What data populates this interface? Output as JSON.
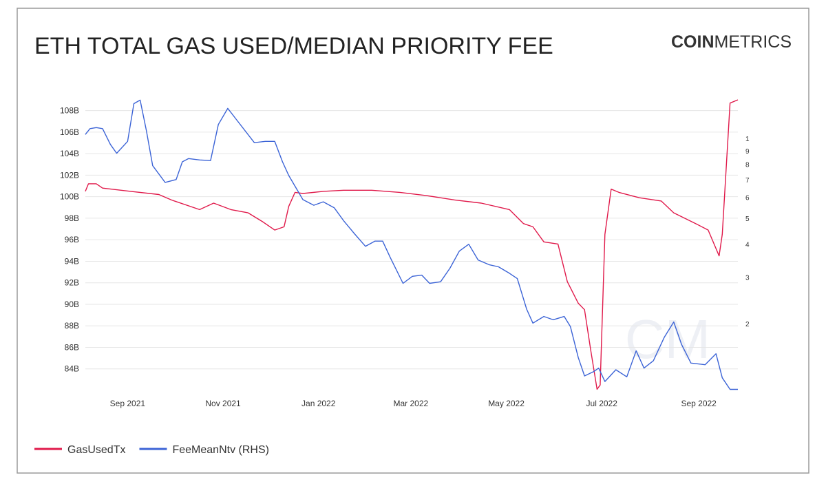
{
  "chart_data": {
    "type": "line",
    "title": "ETH TOTAL GAS USED/MEDIAN PRIORITY FEE",
    "brand": {
      "bold": "COIN",
      "light": "METRICS"
    },
    "watermark": "CM",
    "xlim": [
      "2021-08-05",
      "2022-09-26"
    ],
    "xticks": [
      {
        "value": "2021-09-01",
        "label": "Sep 2021"
      },
      {
        "value": "2021-11-01",
        "label": "Nov 2021"
      },
      {
        "value": "2022-01-01",
        "label": "Jan 2022"
      },
      {
        "value": "2022-03-01",
        "label": "Mar 2022"
      },
      {
        "value": "2022-05-01",
        "label": "May 2022"
      },
      {
        "value": "2022-07-01",
        "label": "Jul 2022"
      },
      {
        "value": "2022-09-01",
        "label": "Sep 2022"
      }
    ],
    "ylim": [
      82,
      109
    ],
    "yticks": [
      {
        "value": 84,
        "label": "84B"
      },
      {
        "value": 86,
        "label": "86B"
      },
      {
        "value": 88,
        "label": "88B"
      },
      {
        "value": 90,
        "label": "90B"
      },
      {
        "value": 92,
        "label": "92B"
      },
      {
        "value": 94,
        "label": "94B"
      },
      {
        "value": 96,
        "label": "96B"
      },
      {
        "value": 98,
        "label": "98B"
      },
      {
        "value": 100,
        "label": "100B"
      },
      {
        "value": 102,
        "label": "102B"
      },
      {
        "value": 104,
        "label": "104B"
      },
      {
        "value": 106,
        "label": "106B"
      },
      {
        "value": 108,
        "label": "108B"
      }
    ],
    "y2lim": [
      1.12,
      14
    ],
    "y2log": true,
    "y2ticks": [
      2,
      3,
      4,
      5,
      6,
      7,
      8,
      9,
      {
        "value": 10,
        "label": "1"
      }
    ],
    "grid": true,
    "legend": "bottom-left",
    "series": [
      {
        "name": "GasUsedTx",
        "color": "#e0194a",
        "axis": "y",
        "x": [
          "2021-08-05",
          "2021-08-07",
          "2021-08-12",
          "2021-08-16",
          "2021-09-03",
          "2021-09-21",
          "2021-09-29",
          "2021-10-17",
          "2021-10-26",
          "2021-11-06",
          "2021-11-17",
          "2021-11-26",
          "2021-12-04",
          "2021-12-10",
          "2021-12-13",
          "2021-12-17",
          "2021-12-22",
          "2022-01-04",
          "2022-01-17",
          "2022-02-04",
          "2022-02-22",
          "2022-03-11",
          "2022-03-29",
          "2022-04-15",
          "2022-05-03",
          "2022-05-12",
          "2022-05-18",
          "2022-05-25",
          "2022-06-03",
          "2022-06-09",
          "2022-06-16",
          "2022-06-20",
          "2022-06-24",
          "2022-06-28",
          "2022-06-30",
          "2022-07-03",
          "2022-07-07",
          "2022-07-12",
          "2022-07-25",
          "2022-08-08",
          "2022-08-16",
          "2022-08-30",
          "2022-09-07",
          "2022-09-14",
          "2022-09-16",
          "2022-09-21",
          "2022-09-26"
        ],
        "values": [
          100.5,
          101.2,
          101.2,
          100.8,
          100.5,
          100.2,
          99.7,
          98.8,
          99.4,
          98.8,
          98.5,
          97.7,
          96.9,
          97.2,
          99.1,
          100.4,
          100.3,
          100.5,
          100.6,
          100.6,
          100.4,
          100.1,
          99.7,
          99.4,
          98.8,
          97.5,
          97.2,
          95.8,
          95.6,
          92.1,
          90.1,
          89.5,
          85.7,
          82.1,
          82.5,
          96.5,
          100.7,
          100.4,
          99.9,
          99.6,
          98.5,
          97.5,
          96.9,
          94.5,
          96.5,
          108.7,
          109.0
        ]
      },
      {
        "name": "FeeMeanNtv (RHS)",
        "color": "#3b63d6",
        "axis": "y2",
        "x": [
          "2021-08-05",
          "2021-08-08",
          "2021-08-12",
          "2021-08-16",
          "2021-08-21",
          "2021-08-25",
          "2021-09-01",
          "2021-09-05",
          "2021-09-09",
          "2021-09-13",
          "2021-09-17",
          "2021-09-25",
          "2021-10-02",
          "2021-10-06",
          "2021-10-10",
          "2021-10-17",
          "2021-10-24",
          "2021-10-29",
          "2021-11-04",
          "2021-11-10",
          "2021-11-21",
          "2021-11-28",
          "2021-12-04",
          "2021-12-09",
          "2021-12-13",
          "2021-12-22",
          "2021-12-29",
          "2022-01-04",
          "2022-01-11",
          "2022-01-17",
          "2022-01-24",
          "2022-01-31",
          "2022-02-06",
          "2022-02-11",
          "2022-02-16",
          "2022-02-24",
          "2022-03-02",
          "2022-03-08",
          "2022-03-13",
          "2022-03-20",
          "2022-03-26",
          "2022-04-01",
          "2022-04-07",
          "2022-04-13",
          "2022-04-20",
          "2022-04-26",
          "2022-05-03",
          "2022-05-08",
          "2022-05-14",
          "2022-05-18",
          "2022-05-25",
          "2022-05-31",
          "2022-06-07",
          "2022-06-11",
          "2022-06-16",
          "2022-06-20",
          "2022-06-26",
          "2022-06-29",
          "2022-07-03",
          "2022-07-10",
          "2022-07-17",
          "2022-07-23",
          "2022-07-28",
          "2022-08-03",
          "2022-08-10",
          "2022-08-16",
          "2022-08-21",
          "2022-08-27",
          "2022-09-05",
          "2022-09-12",
          "2022-09-16",
          "2022-09-21",
          "2022-09-26"
        ],
        "values": [
          10.36,
          10.9,
          11.0,
          10.9,
          9.5,
          8.8,
          9.76,
          13.55,
          13.97,
          10.7,
          7.9,
          6.83,
          7.0,
          8.17,
          8.4,
          8.3,
          8.26,
          11.3,
          13.0,
          11.7,
          9.65,
          9.76,
          9.76,
          8.17,
          7.25,
          5.88,
          5.6,
          5.77,
          5.48,
          4.9,
          4.37,
          3.92,
          4.1,
          4.1,
          3.54,
          2.84,
          3.02,
          3.05,
          2.84,
          2.88,
          3.24,
          3.76,
          3.99,
          3.48,
          3.34,
          3.28,
          3.1,
          2.96,
          2.27,
          2.01,
          2.13,
          2.07,
          2.13,
          1.95,
          1.49,
          1.27,
          1.32,
          1.36,
          1.21,
          1.34,
          1.26,
          1.58,
          1.36,
          1.45,
          1.78,
          2.03,
          1.67,
          1.42,
          1.4,
          1.54,
          1.25,
          1.13,
          1.13
        ]
      }
    ]
  }
}
